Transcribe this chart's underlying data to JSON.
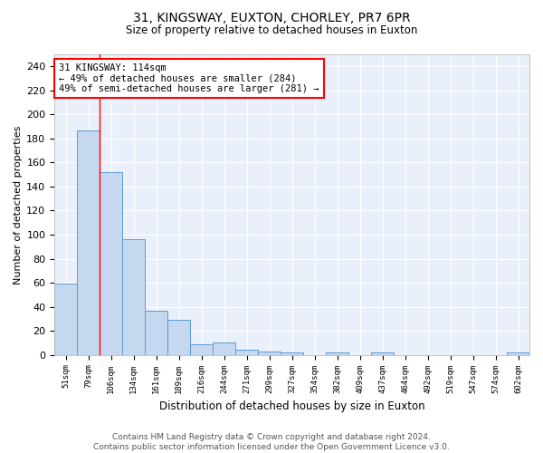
{
  "title1": "31, KINGSWAY, EUXTON, CHORLEY, PR7 6PR",
  "title2": "Size of property relative to detached houses in Euxton",
  "xlabel": "Distribution of detached houses by size in Euxton",
  "ylabel": "Number of detached properties",
  "categories": [
    "51sqm",
    "79sqm",
    "106sqm",
    "134sqm",
    "161sqm",
    "189sqm",
    "216sqm",
    "244sqm",
    "271sqm",
    "299sqm",
    "327sqm",
    "354sqm",
    "382sqm",
    "409sqm",
    "437sqm",
    "464sqm",
    "492sqm",
    "519sqm",
    "547sqm",
    "574sqm",
    "602sqm"
  ],
  "values": [
    59,
    187,
    152,
    96,
    37,
    29,
    9,
    10,
    4,
    3,
    2,
    0,
    2,
    0,
    2,
    0,
    0,
    0,
    0,
    0,
    2
  ],
  "bar_color": "#c5d8f0",
  "bar_edge_color": "#5b9bd5",
  "annotation_text": "31 KINGSWAY: 114sqm\n← 49% of detached houses are smaller (284)\n49% of semi-detached houses are larger (281) →",
  "annotation_box_color": "white",
  "annotation_box_edge_color": "red",
  "vline_x": 1.5,
  "vline_color": "red",
  "ylim": [
    0,
    250
  ],
  "yticks": [
    0,
    20,
    40,
    60,
    80,
    100,
    120,
    140,
    160,
    180,
    200,
    220,
    240
  ],
  "bg_color": "#eaf0fb",
  "grid_color": "white",
  "title1_fontsize": 10,
  "title2_fontsize": 8.5,
  "footer": "Contains HM Land Registry data © Crown copyright and database right 2024.\nContains public sector information licensed under the Open Government Licence v3.0."
}
